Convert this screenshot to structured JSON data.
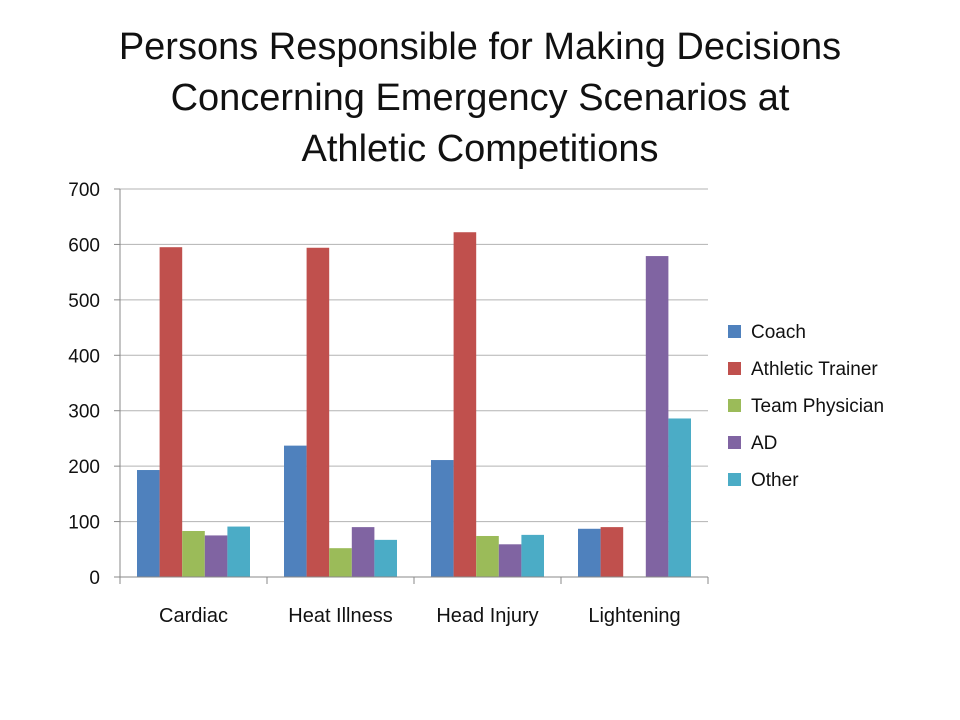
{
  "chart_data": {
    "type": "bar",
    "title_lines": [
      "Persons Responsible for Making Decisions",
      "Concerning Emergency Scenarios at",
      "Athletic Competitions"
    ],
    "categories": [
      "Cardiac",
      "Heat Illness",
      "Head Injury",
      "Lightening"
    ],
    "series": [
      {
        "name": "Coach",
        "color": "#4F81BD",
        "values": [
          193,
          237,
          211,
          87
        ]
      },
      {
        "name": "Athletic Trainer",
        "color": "#C0504D",
        "values": [
          595,
          594,
          622,
          90
        ]
      },
      {
        "name": "Team Physician",
        "color": "#9BBB59",
        "values": [
          83,
          52,
          74,
          1
        ]
      },
      {
        "name": "AD",
        "color": "#8064A2",
        "values": [
          75,
          90,
          59,
          579
        ]
      },
      {
        "name": "Other",
        "color": "#4BACC6",
        "values": [
          91,
          67,
          76,
          286
        ]
      }
    ],
    "xlabel": "",
    "ylabel": "",
    "ylim": [
      0,
      700
    ],
    "yticks": [
      0,
      100,
      200,
      300,
      400,
      500,
      600,
      700
    ],
    "grid": true,
    "legend": "right"
  }
}
